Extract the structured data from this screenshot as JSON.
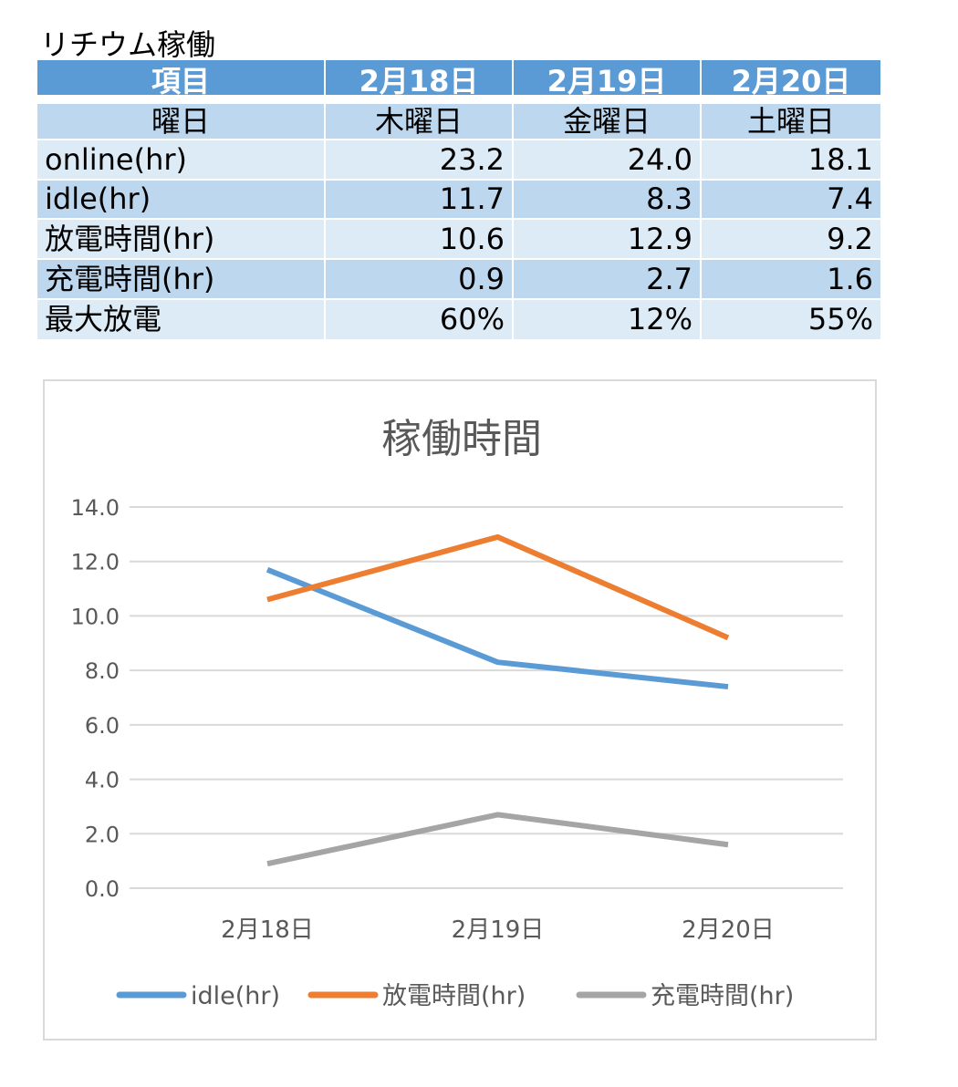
{
  "sheet_title": "リチウム稼働",
  "table": {
    "headers": [
      "項目",
      "2月18日",
      "2月19日",
      "2月20日"
    ],
    "rows": [
      [
        "曜日",
        "木曜日",
        "金曜日",
        "土曜日"
      ],
      [
        "online(hr)",
        "23.2",
        "24.0",
        "18.1"
      ],
      [
        "idle(hr)",
        "11.7",
        "8.3",
        "7.4"
      ],
      [
        "放電時間(hr)",
        "10.6",
        "12.9",
        "9.2"
      ],
      [
        "充電時間(hr)",
        "0.9",
        "2.7",
        "1.6"
      ],
      [
        "最大放電",
        "60%",
        "12%",
        "55%"
      ]
    ]
  },
  "colors": {
    "header": "#5b9bd5",
    "dark_row": "#bdd7ee",
    "light_row": "#ddebf7"
  },
  "chart_data": {
    "type": "line",
    "title": "稼働時間",
    "categories": [
      "2月18日",
      "2月19日",
      "2月20日"
    ],
    "yticks": [
      "0.0",
      "2.0",
      "4.0",
      "6.0",
      "8.0",
      "10.0",
      "12.0",
      "14.0"
    ],
    "ylim": [
      0,
      14
    ],
    "grid": true,
    "legend": "bottom",
    "series": [
      {
        "name": "idle(hr)",
        "values": [
          11.7,
          8.3,
          7.4
        ],
        "color": "#5b9bd5"
      },
      {
        "name": "放電時間(hr)",
        "values": [
          10.6,
          12.9,
          9.2
        ],
        "color": "#ed7d31"
      },
      {
        "name": "充電時間(hr)",
        "values": [
          0.9,
          2.7,
          1.6
        ],
        "color": "#a5a5a5"
      }
    ]
  }
}
